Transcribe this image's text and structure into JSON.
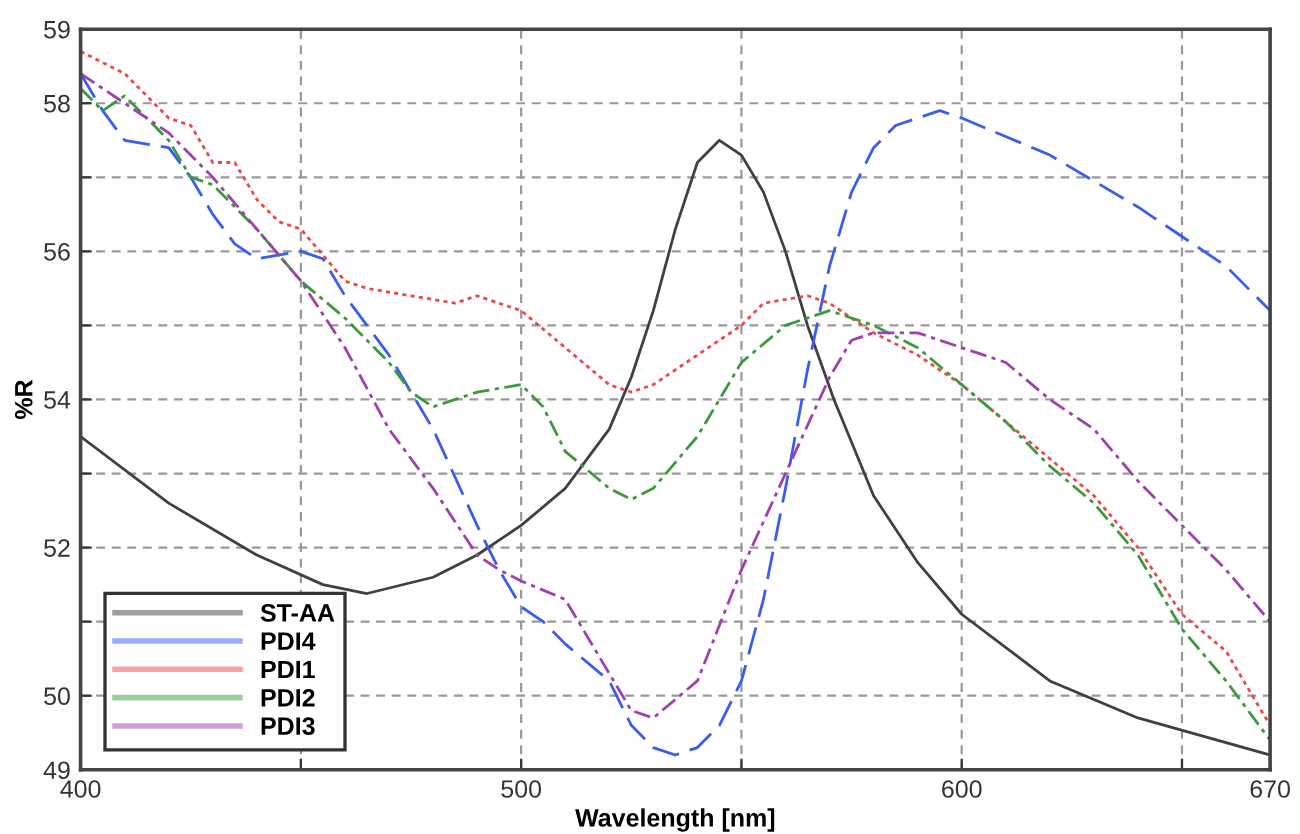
{
  "chart_data": {
    "type": "line",
    "xlabel": "Wavelength [nm]",
    "ylabel": "%R",
    "xlim": [
      400,
      670
    ],
    "ylim": [
      49,
      59
    ],
    "xticks": [
      400,
      {
        "value": 450,
        "label": null
      },
      500,
      {
        "value": 550,
        "label": null
      },
      600,
      {
        "value": 650,
        "label": null
      },
      670
    ],
    "yticks": [
      49,
      50,
      {
        "value": 51,
        "label": null
      },
      52,
      {
        "value": 53,
        "label": null
      },
      54,
      {
        "value": 55,
        "label": null
      },
      56,
      {
        "value": 57,
        "label": null
      },
      58,
      59
    ],
    "grid": true,
    "legend": "bottom left",
    "marker": "none",
    "series": [
      {
        "name": "ST-AA",
        "color": "#404040",
        "line_style": "solid",
        "x": [
          400,
          420,
          440,
          455,
          465,
          480,
          490,
          500,
          510,
          520,
          525,
          530,
          535,
          540,
          545,
          550,
          555,
          560,
          565,
          571,
          580,
          590,
          600,
          620,
          640,
          670
        ],
        "values": [
          53.5,
          52.6,
          51.9,
          51.5,
          51.38,
          51.6,
          51.9,
          52.3,
          52.8,
          53.6,
          54.3,
          55.2,
          56.3,
          57.2,
          57.5,
          57.3,
          56.8,
          56,
          55,
          54,
          52.7,
          51.8,
          51.1,
          50.2,
          49.7,
          49.2
        ]
      },
      {
        "name": "PDI4",
        "color": "#3a5cf0",
        "line_style": "longdash",
        "x": [
          400,
          405,
          410,
          420,
          425,
          430,
          435,
          440,
          450,
          455,
          460,
          470,
          480,
          490,
          495,
          500,
          505,
          510,
          520,
          525,
          530,
          535,
          540,
          545,
          550,
          555,
          560,
          565,
          570,
          575,
          580,
          585,
          595,
          600,
          620,
          640,
          660,
          670
        ],
        "values": [
          58.4,
          57.9,
          57.5,
          57.4,
          57,
          56.5,
          56.1,
          55.9,
          56,
          55.9,
          55.4,
          54.6,
          53.6,
          52.3,
          51.7,
          51.2,
          51,
          50.7,
          50.2,
          49.6,
          49.3,
          49.2,
          49.3,
          49.6,
          50.2,
          51.3,
          52.8,
          54.4,
          55.8,
          56.8,
          57.4,
          57.7,
          57.9,
          57.8,
          57.3,
          56.6,
          55.8,
          55.2
        ]
      },
      {
        "name": "PDI1",
        "color": "#f04848",
        "line_style": "dotted",
        "x": [
          400,
          410,
          420,
          425,
          430,
          435,
          440,
          445,
          450,
          460,
          465,
          475,
          485,
          490,
          500,
          510,
          520,
          525,
          530,
          540,
          550,
          555,
          565,
          570,
          580,
          590,
          600,
          610,
          620,
          630,
          640,
          650,
          660,
          670
        ],
        "values": [
          58.7,
          58.4,
          57.8,
          57.7,
          57.2,
          57.2,
          56.7,
          56.4,
          56.3,
          55.6,
          55.5,
          55.4,
          55.3,
          55.4,
          55.2,
          54.7,
          54.2,
          54.1,
          54.2,
          54.6,
          55,
          55.3,
          55.4,
          55.3,
          54.9,
          54.6,
          54.2,
          53.7,
          53.2,
          52.7,
          52,
          51.1,
          50.6,
          49.6
        ]
      },
      {
        "name": "PDI2",
        "color": "#3c9a3c",
        "line_style": "dashdot",
        "x": [
          400,
          405,
          410,
          420,
          425,
          430,
          440,
          450,
          460,
          470,
          475,
          480,
          490,
          500,
          505,
          510,
          520,
          525,
          530,
          540,
          550,
          560,
          570,
          580,
          590,
          600,
          610,
          620,
          630,
          640,
          650,
          660,
          670
        ],
        "values": [
          58.2,
          57.9,
          58.1,
          57.5,
          57,
          56.9,
          56.3,
          55.6,
          55.1,
          54.5,
          54.1,
          53.9,
          54.1,
          54.2,
          53.9,
          53.3,
          52.8,
          52.65,
          52.8,
          53.5,
          54.5,
          55,
          55.2,
          55,
          54.7,
          54.2,
          53.7,
          53.1,
          52.6,
          51.9,
          50.9,
          50.2,
          49.4
        ]
      },
      {
        "name": "PDI3",
        "color": "#a040b0",
        "line_style": "dashdot",
        "x": [
          400,
          410,
          420,
          430,
          440,
          450,
          460,
          470,
          480,
          490,
          495,
          500,
          510,
          520,
          525,
          530,
          540,
          550,
          560,
          570,
          575,
          580,
          590,
          600,
          610,
          620,
          630,
          640,
          650,
          660,
          670
        ],
        "values": [
          58.4,
          58,
          57.6,
          57,
          56.3,
          55.6,
          54.7,
          53.6,
          52.8,
          51.9,
          51.7,
          51.55,
          51.3,
          50.3,
          49.8,
          49.7,
          50.2,
          51.7,
          53,
          54.3,
          54.8,
          54.9,
          54.9,
          54.7,
          54.5,
          54,
          53.6,
          52.9,
          52.3,
          51.7,
          51
        ]
      }
    ]
  }
}
